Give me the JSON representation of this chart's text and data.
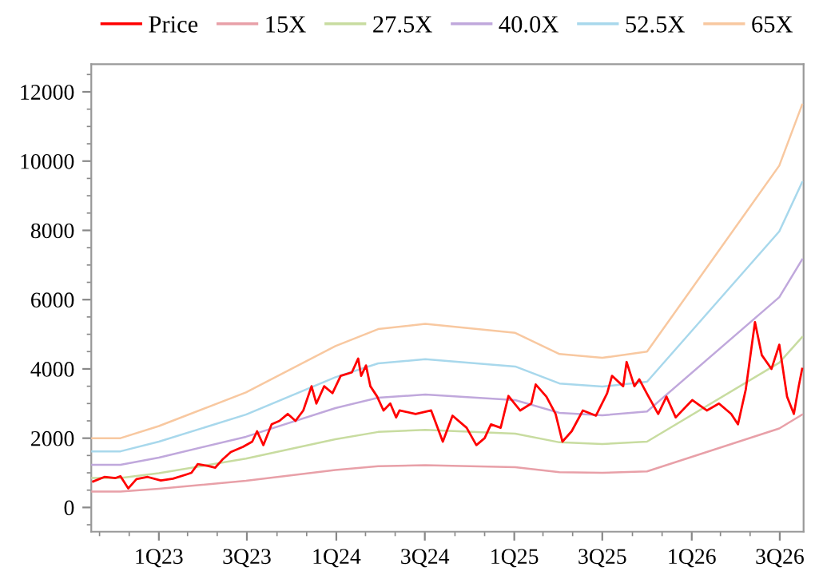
{
  "chart_data": {
    "type": "line",
    "legend": "top",
    "grid": false,
    "marker": "none",
    "line_style": "solid",
    "xlim": [
      "2022-08-15",
      "2026-08-19"
    ],
    "ylim": [
      -700,
      12800
    ],
    "xticks": [
      {
        "value": "2023-01-01",
        "label": "1Q23"
      },
      {
        "value": "2023-07-01",
        "label": "3Q23"
      },
      {
        "value": "2024-01-01",
        "label": "1Q24"
      },
      {
        "value": "2024-07-01",
        "label": "3Q24"
      },
      {
        "value": "2025-01-01",
        "label": "1Q25"
      },
      {
        "value": "2025-07-01",
        "label": "3Q25"
      },
      {
        "value": "2026-01-01",
        "label": "1Q26"
      },
      {
        "value": "2026-07-01",
        "label": "3Q26"
      }
    ],
    "yticks": [
      0,
      2000,
      4000,
      6000,
      8000,
      10000,
      12000
    ],
    "series": [
      {
        "name": "Price",
        "color": "#ff0000",
        "x": [
          "2022-08-19",
          "2022-09-11",
          "2022-10-04",
          "2022-10-14",
          "2022-10-30",
          "2022-11-16",
          "2022-12-09",
          "2023-01-05",
          "2023-01-30",
          "2023-02-26",
          "2023-03-09",
          "2023-03-22",
          "2023-04-12",
          "2023-04-27",
          "2023-05-13",
          "2023-05-29",
          "2023-06-23",
          "2023-07-12",
          "2023-07-22",
          "2023-08-04",
          "2023-08-21",
          "2023-09-06",
          "2023-09-23",
          "2023-10-09",
          "2023-10-25",
          "2023-11-11",
          "2023-11-21",
          "2023-12-07",
          "2023-12-24",
          "2024-01-10",
          "2024-02-02",
          "2024-02-15",
          "2024-02-21",
          "2024-03-02",
          "2024-03-11",
          "2024-03-25",
          "2024-04-07",
          "2024-04-21",
          "2024-05-03",
          "2024-05-10",
          "2024-06-12",
          "2024-07-14",
          "2024-08-07",
          "2024-08-27",
          "2024-09-25",
          "2024-10-15",
          "2024-11-01",
          "2024-11-14",
          "2024-12-04",
          "2024-12-20",
          "2025-01-13",
          "2025-02-05",
          "2025-02-14",
          "2025-03-08",
          "2025-03-27",
          "2025-04-10",
          "2025-04-29",
          "2025-05-22",
          "2025-06-18",
          "2025-07-11",
          "2025-07-21",
          "2025-08-13",
          "2025-08-20",
          "2025-09-05",
          "2025-09-15",
          "2025-10-01",
          "2025-10-24",
          "2025-11-10",
          "2025-11-29",
          "2026-01-02",
          "2026-02-01",
          "2026-02-26",
          "2026-03-23",
          "2026-04-06",
          "2026-04-22",
          "2026-05-11",
          "2026-05-25",
          "2026-06-14",
          "2026-06-30",
          "2026-07-16",
          "2026-07-30",
          "2026-08-09",
          "2026-08-16"
        ],
        "values": [
          750,
          880,
          850,
          900,
          550,
          820,
          880,
          780,
          830,
          950,
          1000,
          1250,
          1200,
          1150,
          1400,
          1600,
          1750,
          1900,
          2200,
          1800,
          2400,
          2500,
          2700,
          2500,
          2800,
          3500,
          3000,
          3500,
          3300,
          3800,
          3900,
          4300,
          3800,
          4100,
          3500,
          3200,
          2800,
          3000,
          2600,
          2800,
          2700,
          2800,
          1900,
          2650,
          2300,
          1800,
          2000,
          2400,
          2300,
          3220,
          2800,
          3000,
          3550,
          3200,
          2700,
          1900,
          2200,
          2800,
          2650,
          3300,
          3800,
          3500,
          4200,
          3500,
          3700,
          3280,
          2700,
          3200,
          2600,
          3100,
          2800,
          3000,
          2700,
          2400,
          3400,
          5350,
          4400,
          4000,
          4700,
          3200,
          2700,
          3500,
          4000
        ]
      },
      {
        "name": "15X",
        "color": "#e8a0a8",
        "x": [
          "2022-08-15",
          "2022-10-14",
          "2023-01-01",
          "2023-06-29",
          "2023-12-30",
          "2024-03-27",
          "2024-07-02",
          "2025-01-03",
          "2025-04-04",
          "2025-07-01",
          "2025-10-01",
          "2026-06-30",
          "2026-08-16"
        ],
        "values": [
          460,
          460,
          540,
          770,
          1080,
          1190,
          1220,
          1160,
          1020,
          1000,
          1040,
          2280,
          2680
        ]
      },
      {
        "name": "27.5X",
        "color": "#c8dca0",
        "x": [
          "2022-08-15",
          "2022-10-14",
          "2023-01-01",
          "2023-06-29",
          "2023-12-30",
          "2024-03-27",
          "2024-07-02",
          "2025-01-03",
          "2025-04-04",
          "2025-07-01",
          "2025-10-01",
          "2026-06-30",
          "2026-08-16"
        ],
        "values": [
          850,
          850,
          990,
          1410,
          1970,
          2180,
          2240,
          2130,
          1880,
          1830,
          1900,
          4180,
          4920
        ]
      },
      {
        "name": "40.0X",
        "color": "#c0a8dc",
        "x": [
          "2022-08-15",
          "2022-10-14",
          "2023-01-01",
          "2023-06-29",
          "2023-12-30",
          "2024-03-27",
          "2024-07-02",
          "2025-01-03",
          "2025-04-04",
          "2025-07-01",
          "2025-10-01",
          "2026-06-30",
          "2026-08-16"
        ],
        "values": [
          1230,
          1230,
          1440,
          2040,
          2870,
          3170,
          3260,
          3100,
          2730,
          2660,
          2770,
          6070,
          7160
        ]
      },
      {
        "name": "52.5X",
        "color": "#a8d8ec",
        "x": [
          "2022-08-15",
          "2022-10-14",
          "2023-01-01",
          "2023-06-29",
          "2023-12-30",
          "2024-03-27",
          "2024-07-02",
          "2025-01-03",
          "2025-04-04",
          "2025-07-01",
          "2025-10-01",
          "2026-06-30",
          "2026-08-16"
        ],
        "values": [
          1620,
          1620,
          1900,
          2680,
          3760,
          4160,
          4280,
          4070,
          3580,
          3490,
          3630,
          7970,
          9390
        ]
      },
      {
        "name": "65X",
        "color": "#f8c8a0",
        "x": [
          "2022-08-15",
          "2022-10-14",
          "2023-01-01",
          "2023-06-29",
          "2023-12-30",
          "2024-03-27",
          "2024-07-02",
          "2025-01-03",
          "2025-04-04",
          "2025-07-01",
          "2025-10-01",
          "2026-06-30",
          "2026-08-16"
        ],
        "values": [
          2000,
          2000,
          2350,
          3320,
          4660,
          5150,
          5300,
          5040,
          4430,
          4320,
          4500,
          9870,
          11630
        ]
      }
    ]
  }
}
